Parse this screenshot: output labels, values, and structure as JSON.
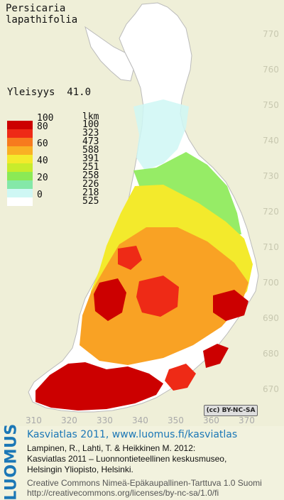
{
  "map": {
    "species_line1": "Persicaria",
    "species_line2": "lapathifolia",
    "frequency_label": "Yleisyys",
    "frequency_value": "41.0",
    "legend_header": "lkm",
    "legend": [
      {
        "label": "100",
        "count": "100",
        "color": "#cc0000"
      },
      {
        "label": "80",
        "count": "323",
        "color": "#ee2a16"
      },
      {
        "label": "",
        "count": "473",
        "color": "#f77a1e"
      },
      {
        "label": "60",
        "count": "588",
        "color": "#f9b024"
      },
      {
        "label": "",
        "count": "391",
        "color": "#f3ea2c"
      },
      {
        "label": "40",
        "count": "251",
        "color": "#c8ec2c"
      },
      {
        "label": "",
        "count": "258",
        "color": "#8bea55"
      },
      {
        "label": "20",
        "count": "226",
        "color": "#84e8a8"
      },
      {
        "label": "",
        "count": "218",
        "color": "#cff7f4"
      },
      {
        "label": "0",
        "count": "525",
        "color": "#ffffff"
      }
    ],
    "y_ticks": [
      "770",
      "760",
      "750",
      "740",
      "730",
      "720",
      "710",
      "700",
      "690",
      "680",
      "670"
    ],
    "x_ticks": [
      "310",
      "320",
      "330",
      "340",
      "350",
      "360",
      "370"
    ],
    "license_badge": "BY-NC-SA"
  },
  "footer": {
    "brand": "LUOMUS",
    "title_link": "Kasviatlas 2011, www.luomus.fi/kasviatlas",
    "citation_line1": "Lampinen, R., Lahti, T. & Heikkinen M. 2012:",
    "citation_line2": "Kasviatlas 2011 – Luonnontieteellinen keskusmuseo,",
    "citation_line3": "Helsingin Yliopisto, Helsinki.",
    "license_line1": "Creative Commons Nimeä-Epäkaupallinen-Tarttuva 1.0 Suomi",
    "license_line2": "http://creativecommons.org/licenses/by-nc-sa/1.0/fi"
  }
}
